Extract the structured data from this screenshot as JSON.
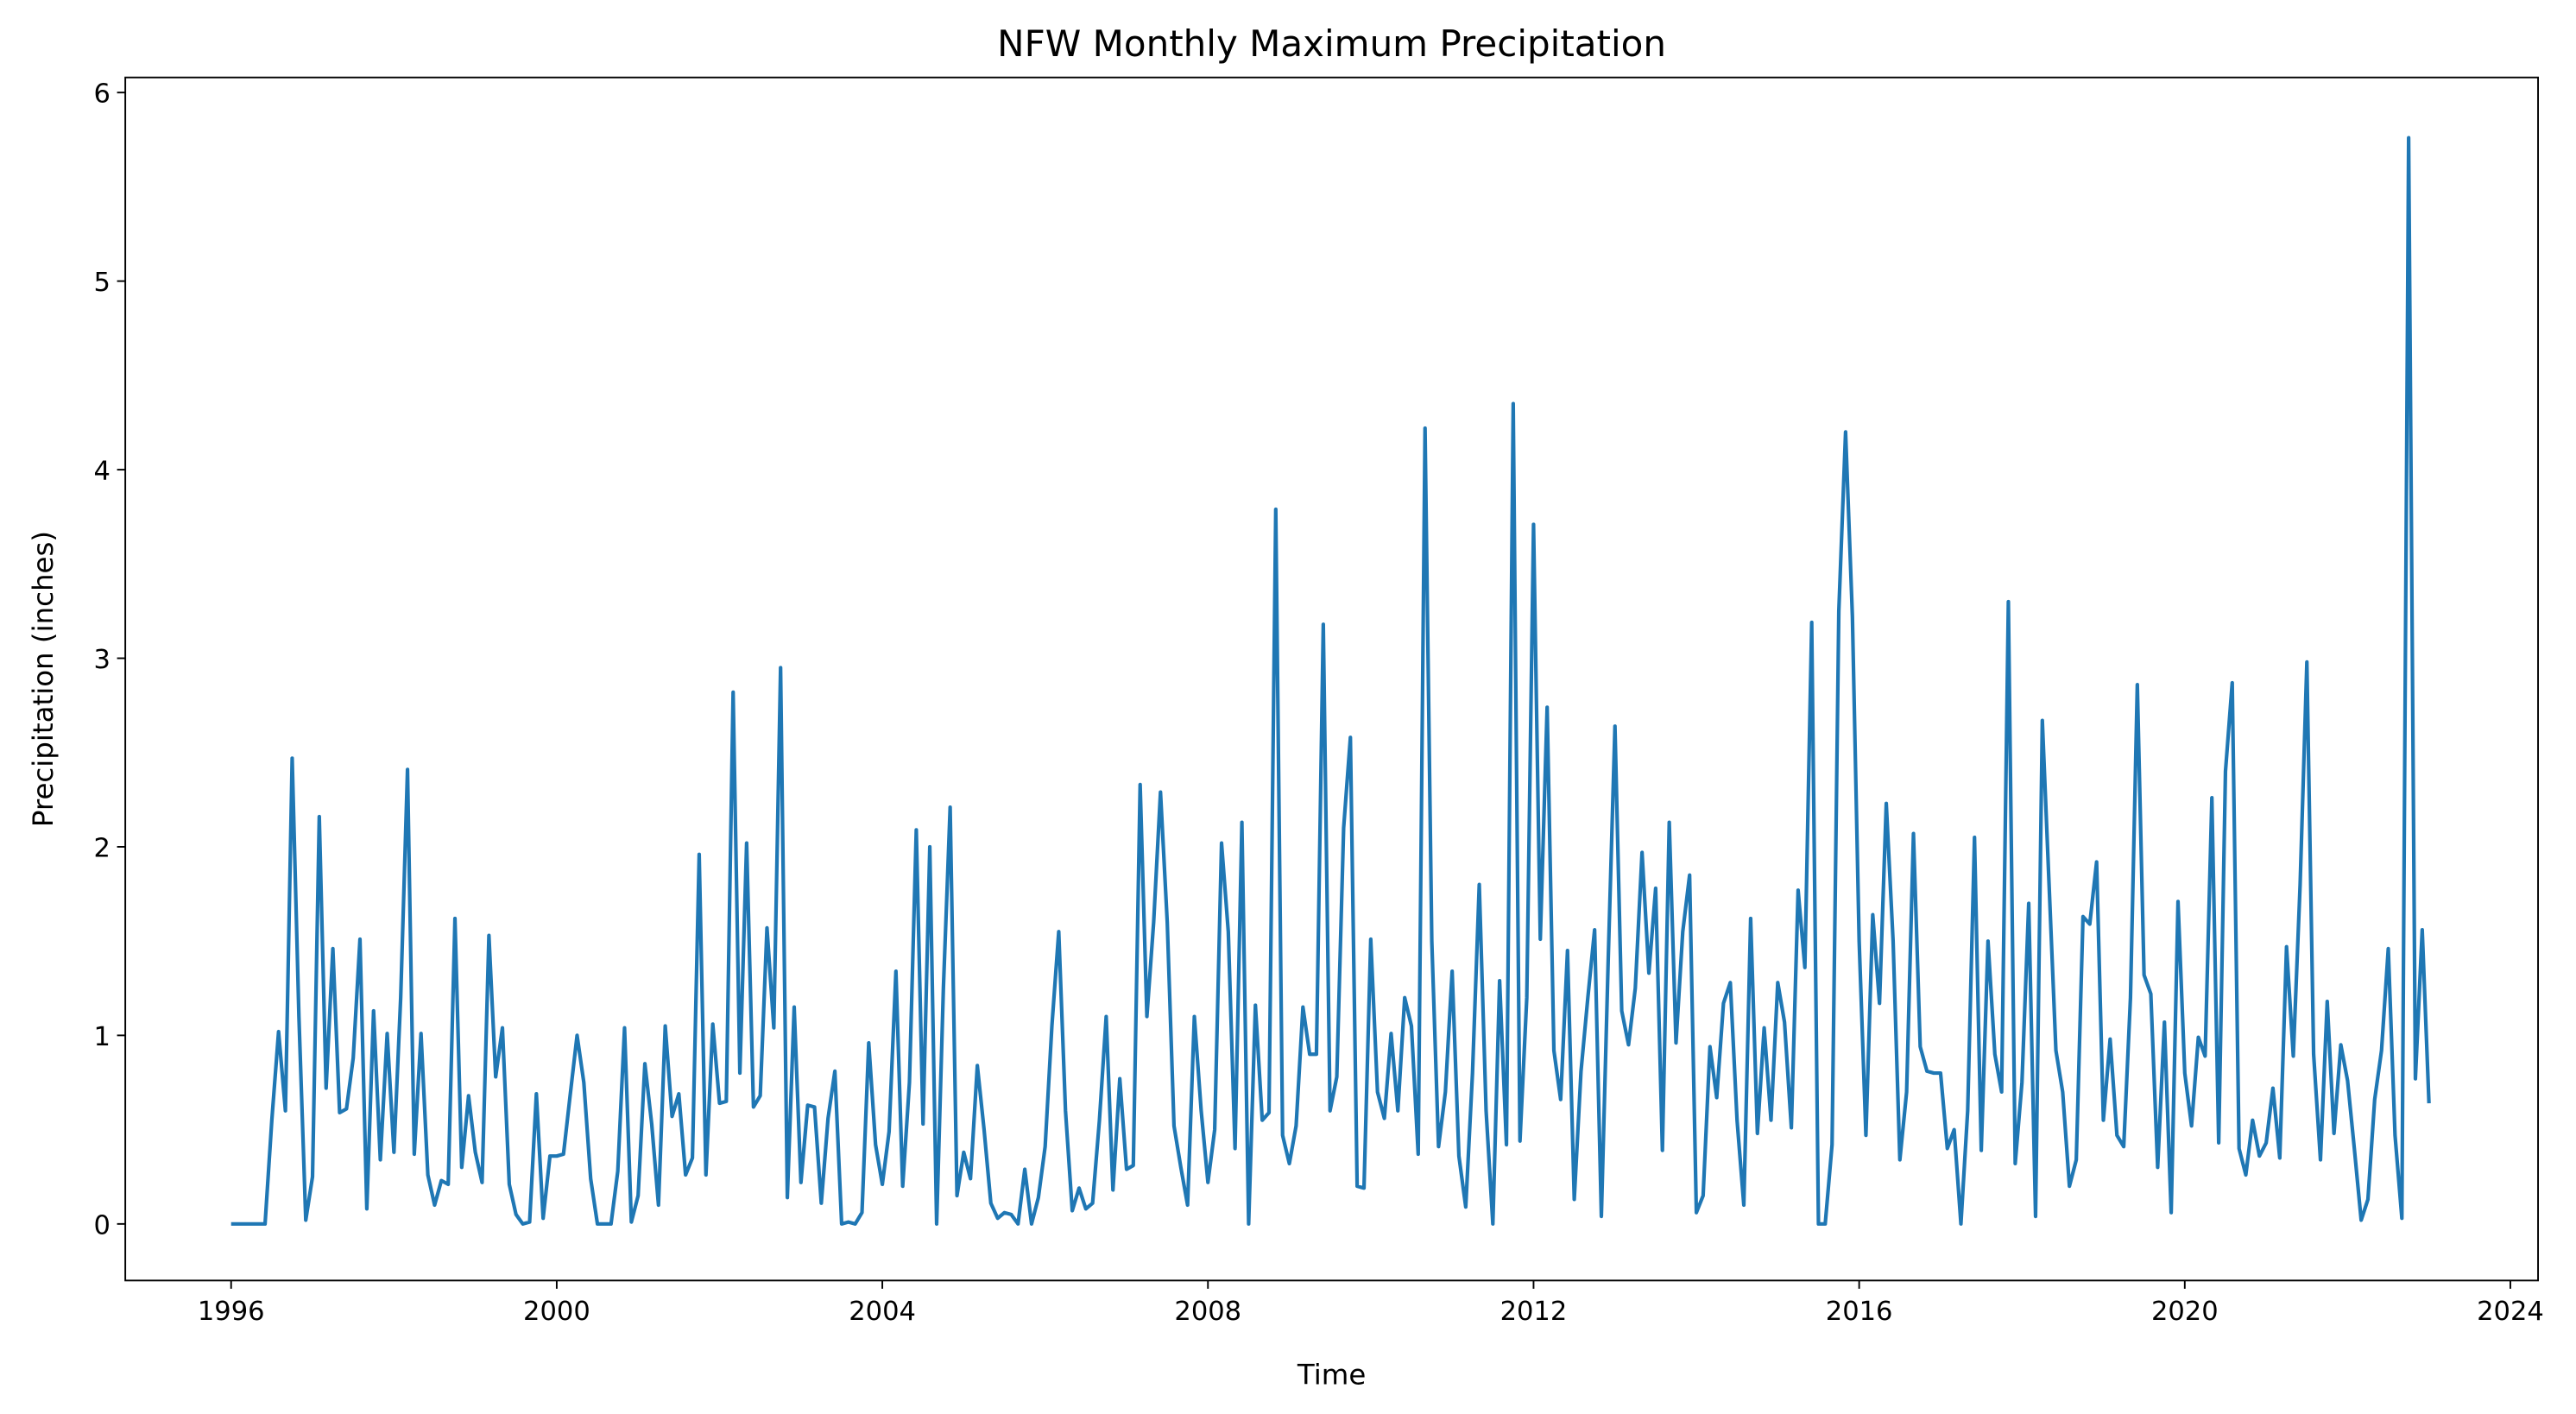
{
  "chart_data": {
    "type": "line",
    "title": "NFW Monthly Maximum Precipitation",
    "x_label": "Time",
    "y_label": "Precipitation (inches)",
    "color": "#1f77b4",
    "xlim": [
      1994.7,
      2024.34
    ],
    "xticks": [
      1996,
      2000,
      2004,
      2008,
      2012,
      2016,
      2020,
      2024
    ],
    "ylim": [
      -0.3,
      6.08
    ],
    "yticks": [
      0,
      1,
      2,
      3,
      4,
      5,
      6
    ],
    "x": [
      1996.0,
      1996.083,
      1996.167,
      1996.25,
      1996.333,
      1996.417,
      1996.5,
      1996.583,
      1996.667,
      1996.75,
      1996.833,
      1996.917,
      1997.0,
      1997.083,
      1997.167,
      1997.25,
      1997.333,
      1997.417,
      1997.5,
      1997.583,
      1997.667,
      1997.75,
      1997.833,
      1997.917,
      1998.0,
      1998.083,
      1998.167,
      1998.25,
      1998.333,
      1998.417,
      1998.5,
      1998.583,
      1998.667,
      1998.75,
      1998.833,
      1998.917,
      1999.0,
      1999.083,
      1999.167,
      1999.25,
      1999.333,
      1999.417,
      1999.5,
      1999.583,
      1999.667,
      1999.75,
      1999.833,
      1999.917,
      2000.0,
      2000.083,
      2000.167,
      2000.25,
      2000.333,
      2000.417,
      2000.5,
      2000.583,
      2000.667,
      2000.75,
      2000.833,
      2000.917,
      2001.0,
      2001.083,
      2001.167,
      2001.25,
      2001.333,
      2001.417,
      2001.5,
      2001.583,
      2001.667,
      2001.75,
      2001.833,
      2001.917,
      2002.0,
      2002.083,
      2002.167,
      2002.25,
      2002.333,
      2002.417,
      2002.5,
      2002.583,
      2002.667,
      2002.75,
      2002.833,
      2002.917,
      2003.0,
      2003.083,
      2003.167,
      2003.25,
      2003.333,
      2003.417,
      2003.5,
      2003.583,
      2003.667,
      2003.75,
      2003.833,
      2003.917,
      2004.0,
      2004.083,
      2004.167,
      2004.25,
      2004.333,
      2004.417,
      2004.5,
      2004.583,
      2004.667,
      2004.75,
      2004.833,
      2004.917,
      2005.0,
      2005.083,
      2005.167,
      2005.25,
      2005.333,
      2005.417,
      2005.5,
      2005.583,
      2005.667,
      2005.75,
      2005.833,
      2005.917,
      2006.0,
      2006.083,
      2006.167,
      2006.25,
      2006.333,
      2006.417,
      2006.5,
      2006.583,
      2006.667,
      2006.75,
      2006.833,
      2006.917,
      2007.0,
      2007.083,
      2007.167,
      2007.25,
      2007.333,
      2007.417,
      2007.5,
      2007.583,
      2007.667,
      2007.75,
      2007.833,
      2007.917,
      2008.0,
      2008.083,
      2008.167,
      2008.25,
      2008.333,
      2008.417,
      2008.5,
      2008.583,
      2008.667,
      2008.75,
      2008.833,
      2008.917,
      2009.0,
      2009.083,
      2009.167,
      2009.25,
      2009.333,
      2009.417,
      2009.5,
      2009.583,
      2009.667,
      2009.75,
      2009.833,
      2009.917,
      2010.0,
      2010.083,
      2010.167,
      2010.25,
      2010.333,
      2010.417,
      2010.5,
      2010.583,
      2010.667,
      2010.75,
      2010.833,
      2010.917,
      2011.0,
      2011.083,
      2011.167,
      2011.25,
      2011.333,
      2011.417,
      2011.5,
      2011.583,
      2011.667,
      2011.75,
      2011.833,
      2011.917,
      2012.0,
      2012.083,
      2012.167,
      2012.25,
      2012.333,
      2012.417,
      2012.5,
      2012.583,
      2012.667,
      2012.75,
      2012.833,
      2012.917,
      2013.0,
      2013.083,
      2013.167,
      2013.25,
      2013.333,
      2013.417,
      2013.5,
      2013.583,
      2013.667,
      2013.75,
      2013.833,
      2013.917,
      2014.0,
      2014.083,
      2014.167,
      2014.25,
      2014.333,
      2014.417,
      2014.5,
      2014.583,
      2014.667,
      2014.75,
      2014.833,
      2014.917,
      2015.0,
      2015.083,
      2015.167,
      2015.25,
      2015.333,
      2015.417,
      2015.5,
      2015.583,
      2015.667,
      2015.75,
      2015.833,
      2015.917,
      2016.0,
      2016.083,
      2016.167,
      2016.25,
      2016.333,
      2016.417,
      2016.5,
      2016.583,
      2016.667,
      2016.75,
      2016.833,
      2016.917,
      2017.0,
      2017.083,
      2017.167,
      2017.25,
      2017.333,
      2017.417,
      2017.5,
      2017.583,
      2017.667,
      2017.75,
      2017.833,
      2017.917,
      2018.0,
      2018.083,
      2018.167,
      2018.25,
      2018.333,
      2018.417,
      2018.5,
      2018.583,
      2018.667,
      2018.75,
      2018.833,
      2018.917,
      2019.0,
      2019.083,
      2019.167,
      2019.25,
      2019.333,
      2019.417,
      2019.5,
      2019.583,
      2019.667,
      2019.75,
      2019.833,
      2019.917,
      2020.0,
      2020.083,
      2020.167,
      2020.25,
      2020.333,
      2020.417,
      2020.5,
      2020.583,
      2020.667,
      2020.75,
      2020.833,
      2020.917,
      2021.0,
      2021.083,
      2021.167,
      2021.25,
      2021.333,
      2021.417,
      2021.5,
      2021.583,
      2021.667,
      2021.75,
      2021.833,
      2021.917,
      2022.0,
      2022.083,
      2022.167,
      2022.25,
      2022.333,
      2022.417,
      2022.5,
      2022.583,
      2022.667,
      2022.75,
      2022.833,
      2022.917,
      2023.0
    ],
    "values": [
      0,
      0,
      0,
      0,
      0,
      0,
      0.55,
      1.02,
      0.6,
      2.47,
      1.1,
      0.02,
      0.25,
      2.16,
      0.72,
      1.46,
      0.59,
      0.61,
      0.88,
      1.51,
      0.08,
      1.13,
      0.34,
      1.01,
      0.38,
      1.2,
      2.41,
      0.37,
      1.01,
      0.26,
      0.1,
      0.23,
      0.21,
      1.62,
      0.3,
      0.68,
      0.38,
      0.22,
      1.53,
      0.78,
      1.04,
      0.21,
      0.05,
      0,
      0.01,
      0.69,
      0.03,
      0.36,
      0.36,
      0.37,
      0.69,
      1.0,
      0.75,
      0.24,
      0,
      0,
      0,
      0.28,
      1.04,
      0.01,
      0.15,
      0.85,
      0.53,
      0.1,
      1.05,
      0.57,
      0.69,
      0.26,
      0.35,
      1.96,
      0.26,
      1.06,
      0.64,
      0.65,
      2.82,
      0.8,
      2.02,
      0.62,
      0.68,
      1.57,
      1.04,
      2.95,
      0.14,
      1.15,
      0.22,
      0.63,
      0.62,
      0.11,
      0.56,
      0.81,
      0,
      0.01,
      0,
      0.06,
      0.96,
      0.42,
      0.21,
      0.49,
      1.34,
      0.2,
      0.75,
      2.09,
      0.53,
      2.0,
      0,
      1.25,
      2.21,
      0.15,
      0.38,
      0.24,
      0.84,
      0.5,
      0.11,
      0.03,
      0.06,
      0.05,
      0,
      0.29,
      0,
      0.14,
      0.41,
      1.05,
      1.55,
      0.6,
      0.07,
      0.19,
      0.08,
      0.11,
      0.55,
      1.1,
      0.18,
      0.77,
      0.29,
      0.31,
      2.33,
      1.1,
      1.6,
      2.29,
      1.6,
      0.52,
      0.3,
      0.1,
      1.1,
      0.6,
      0.22,
      0.5,
      2.02,
      1.55,
      0.4,
      2.13,
      0,
      1.16,
      0.55,
      0.59,
      3.79,
      0.47,
      0.32,
      0.52,
      1.15,
      0.9,
      0.9,
      3.18,
      0.6,
      0.78,
      2.1,
      2.58,
      0.2,
      0.19,
      1.51,
      0.7,
      0.56,
      1.01,
      0.6,
      1.2,
      1.05,
      0.37,
      4.22,
      1.5,
      0.41,
      0.7,
      1.34,
      0.36,
      0.09,
      0.8,
      1.8,
      0.6,
      0,
      1.29,
      0.42,
      4.35,
      0.44,
      1.2,
      3.71,
      1.51,
      2.74,
      0.92,
      0.66,
      1.45,
      0.13,
      0.81,
      1.2,
      1.56,
      0.04,
      1.4,
      2.64,
      1.13,
      0.95,
      1.25,
      1.97,
      1.33,
      1.78,
      0.39,
      2.13,
      0.96,
      1.55,
      1.85,
      0.06,
      0.15,
      0.94,
      0.67,
      1.17,
      1.28,
      0.55,
      0.1,
      1.62,
      0.48,
      1.04,
      0.55,
      1.28,
      1.07,
      0.51,
      1.77,
      1.36,
      3.19,
      0,
      0,
      0.42,
      3.25,
      4.2,
      3.22,
      1.5,
      0.47,
      1.64,
      1.17,
      2.23,
      1.5,
      0.34,
      0.7,
      2.07,
      0.94,
      0.81,
      0.8,
      0.8,
      0.4,
      0.5,
      0,
      0.6,
      2.05,
      0.39,
      1.5,
      0.9,
      0.7,
      3.3,
      0.32,
      0.75,
      1.7,
      0.04,
      2.67,
      1.8,
      0.92,
      0.7,
      0.2,
      0.34,
      1.63,
      1.59,
      1.92,
      0.55,
      0.98,
      0.47,
      0.41,
      1.2,
      2.86,
      1.32,
      1.22,
      0.3,
      1.07,
      0.06,
      1.71,
      0.8,
      0.52,
      0.99,
      0.89,
      2.26,
      0.43,
      2.4,
      2.87,
      0.4,
      0.26,
      0.55,
      0.36,
      0.43,
      0.72,
      0.35,
      1.47,
      0.89,
      1.8,
      2.98,
      0.9,
      0.34,
      1.18,
      0.48,
      0.95,
      0.76,
      0.4,
      0.02,
      0.13,
      0.66,
      0.92,
      1.46,
      0.47,
      0.03,
      5.76,
      0.77,
      1.56,
      0.64
    ]
  }
}
